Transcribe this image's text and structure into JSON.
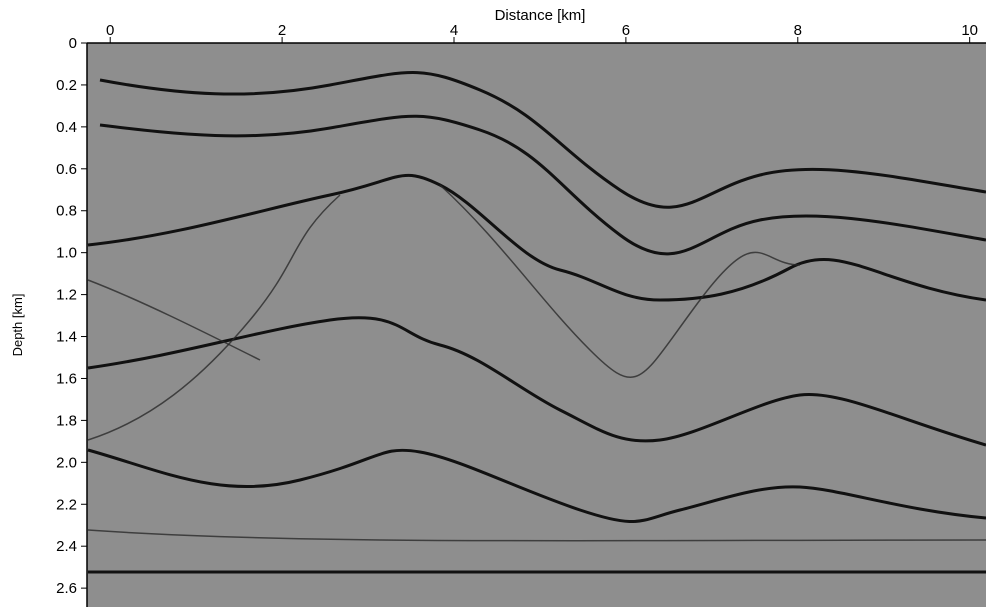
{
  "chart_data": {
    "type": "image",
    "title": "Distance [km]",
    "y_label": "Depth [km]",
    "xlim": [
      -0.27,
      10.19
    ],
    "xticks": [
      0,
      2,
      4,
      6,
      8,
      10
    ],
    "ylim": [
      0,
      2.69
    ],
    "yticks": [
      0,
      0.2,
      0.4,
      0.6,
      0.8,
      {
        "value": 1,
        "label": "1.0"
      },
      1.2,
      1.4,
      1.6,
      1.8,
      {
        "value": 2,
        "label": "2.0"
      },
      2.2,
      2.4,
      2.6
    ]
  }
}
